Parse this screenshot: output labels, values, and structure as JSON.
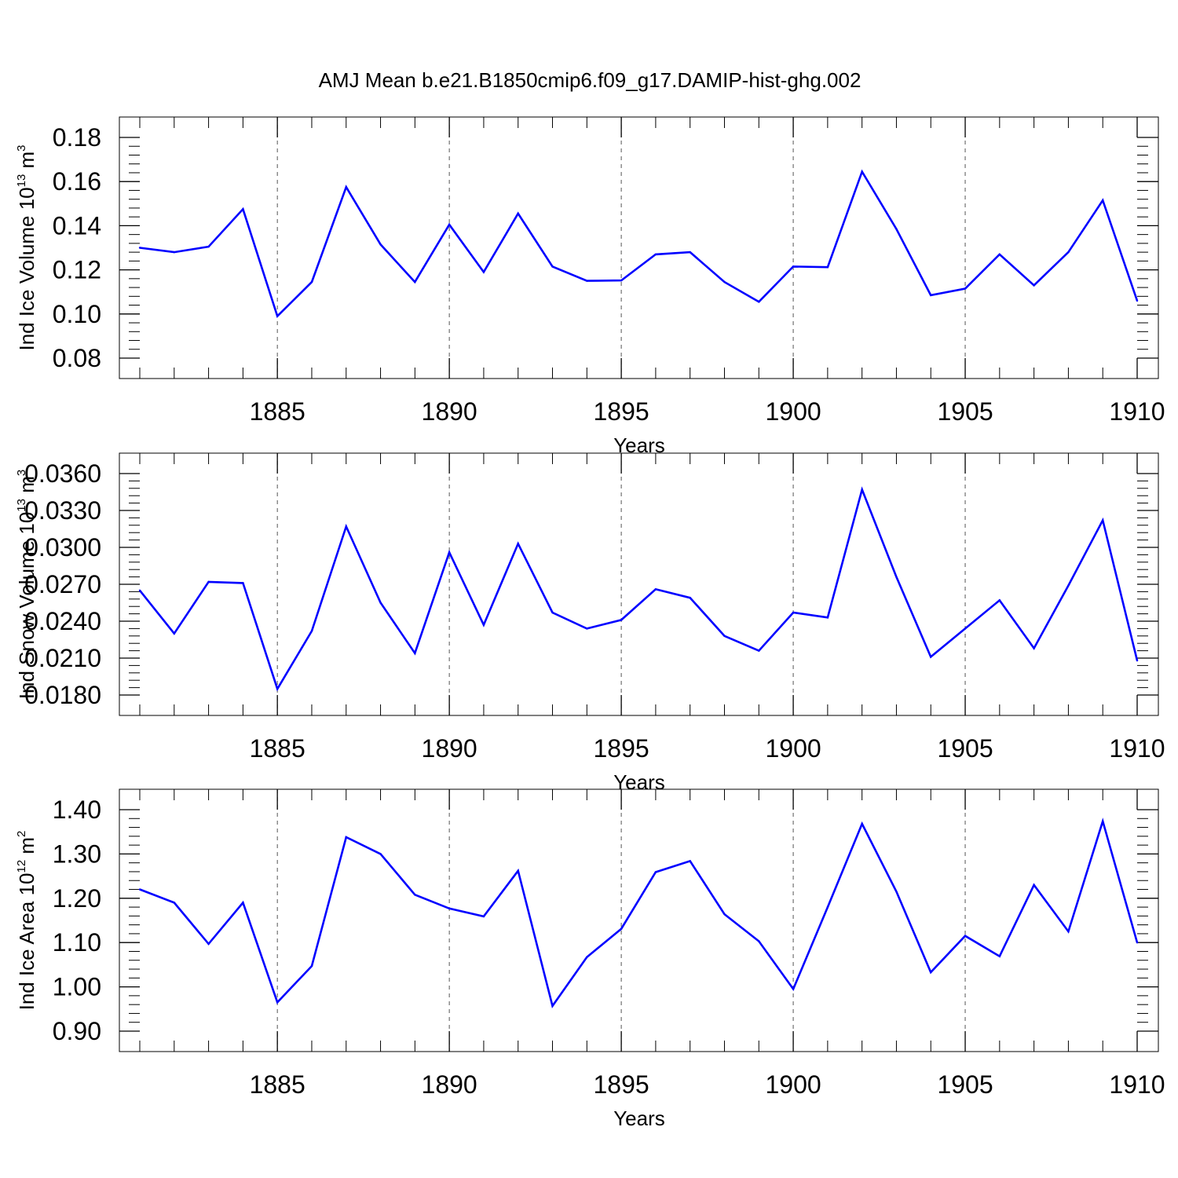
{
  "figure": {
    "title": "AMJ Mean b.e21.B1850cmip6.f09_g17.DAMIP-hist-ghg.002"
  },
  "chart_data": [
    {
      "type": "line",
      "ylabel": {
        "base": "Ind Ice Volume 10",
        "exp": "13",
        "unit": " m",
        "unit_exp": "3"
      },
      "xlabel": "Years",
      "xlim": [
        1881,
        1910
      ],
      "ylim": [
        0.08,
        0.18
      ],
      "yticks": [
        0.08,
        0.1,
        0.12,
        0.14,
        0.16,
        0.18
      ],
      "ytick_labels": [
        "0.08",
        "0.10",
        "0.12",
        "0.14",
        "0.16",
        "0.18"
      ],
      "xticks": [
        1885,
        1890,
        1895,
        1900,
        1905,
        1910
      ],
      "xtick_labels": [
        "1885",
        "1890",
        "1895",
        "1900",
        "1905",
        "1910"
      ],
      "grid": "dashed vertical at major x ticks",
      "color": "#0000ff",
      "series": [
        {
          "x": [
            1881,
            1882,
            1883,
            1884,
            1885,
            1886,
            1887,
            1888,
            1889,
            1890,
            1891,
            1892,
            1893,
            1894,
            1895,
            1896,
            1897,
            1898,
            1899,
            1900,
            1901,
            1902,
            1903,
            1904,
            1905,
            1906,
            1907,
            1908,
            1909,
            1910
          ],
          "values": [
            0.13,
            0.128,
            0.1305,
            0.1475,
            0.099,
            0.1145,
            0.1575,
            0.1315,
            0.1145,
            0.1405,
            0.119,
            0.1455,
            0.1215,
            0.115,
            0.1152,
            0.127,
            0.128,
            0.1145,
            0.1055,
            0.1215,
            0.1212,
            0.1645,
            0.1385,
            0.1085,
            0.1115,
            0.127,
            0.113,
            0.128,
            0.1515,
            0.106
          ]
        }
      ]
    },
    {
      "type": "line",
      "ylabel": {
        "base": "Ind Snow Volume 10",
        "exp": "13",
        "unit": " m",
        "unit_exp": "3"
      },
      "xlabel": "Years",
      "xlim": [
        1881,
        1910
      ],
      "ylim": [
        0.018,
        0.036
      ],
      "yticks": [
        0.018,
        0.021,
        0.024,
        0.027,
        0.03,
        0.033,
        0.036
      ],
      "ytick_labels": [
        "0.0180",
        "0.0210",
        "0.0240",
        "0.0270",
        "0.0300",
        "0.0330",
        "0.0360"
      ],
      "xticks": [
        1885,
        1890,
        1895,
        1900,
        1905,
        1910
      ],
      "xtick_labels": [
        "1885",
        "1890",
        "1895",
        "1900",
        "1905",
        "1910"
      ],
      "grid": "dashed vertical at major x ticks",
      "color": "#0000ff",
      "series": [
        {
          "x": [
            1881,
            1882,
            1883,
            1884,
            1885,
            1886,
            1887,
            1888,
            1889,
            1890,
            1891,
            1892,
            1893,
            1894,
            1895,
            1896,
            1897,
            1898,
            1899,
            1900,
            1901,
            1902,
            1903,
            1904,
            1905,
            1906,
            1907,
            1908,
            1909,
            1910
          ],
          "values": [
            0.0265,
            0.023,
            0.0272,
            0.0271,
            0.0185,
            0.0232,
            0.0317,
            0.0255,
            0.0214,
            0.0296,
            0.0237,
            0.0303,
            0.0247,
            0.0234,
            0.0241,
            0.0266,
            0.0259,
            0.0228,
            0.0216,
            0.0247,
            0.0243,
            0.0347,
            0.0276,
            0.0211,
            0.0234,
            0.0257,
            0.0218,
            0.0269,
            0.0322,
            0.0208
          ]
        }
      ]
    },
    {
      "type": "line",
      "ylabel": {
        "base": "Ind Ice Area 10",
        "exp": "12",
        "unit": " m",
        "unit_exp": "2"
      },
      "xlabel": "Years",
      "xlim": [
        1881,
        1910
      ],
      "ylim": [
        0.9,
        1.4
      ],
      "yticks": [
        0.9,
        1.0,
        1.1,
        1.2,
        1.3,
        1.4
      ],
      "ytick_labels": [
        "0.90",
        "1.00",
        "1.10",
        "1.20",
        "1.30",
        "1.40"
      ],
      "xticks": [
        1885,
        1890,
        1895,
        1900,
        1905,
        1910
      ],
      "xtick_labels": [
        "1885",
        "1890",
        "1895",
        "1900",
        "1905",
        "1910"
      ],
      "grid": "dashed vertical at major x ticks",
      "color": "#0000ff",
      "series": [
        {
          "x": [
            1881,
            1882,
            1883,
            1884,
            1885,
            1886,
            1887,
            1888,
            1889,
            1890,
            1891,
            1892,
            1893,
            1894,
            1895,
            1896,
            1897,
            1898,
            1899,
            1900,
            1901,
            1902,
            1903,
            1904,
            1905,
            1906,
            1907,
            1908,
            1909,
            1910
          ],
          "values": [
            1.22,
            1.19,
            1.097,
            1.19,
            0.965,
            1.047,
            1.338,
            1.3,
            1.208,
            1.177,
            1.159,
            1.262,
            0.957,
            1.067,
            1.131,
            1.259,
            1.284,
            1.164,
            1.103,
            0.995,
            1.18,
            1.368,
            1.215,
            1.033,
            1.115,
            1.069,
            1.23,
            1.125,
            1.374,
            1.1
          ]
        }
      ]
    }
  ]
}
